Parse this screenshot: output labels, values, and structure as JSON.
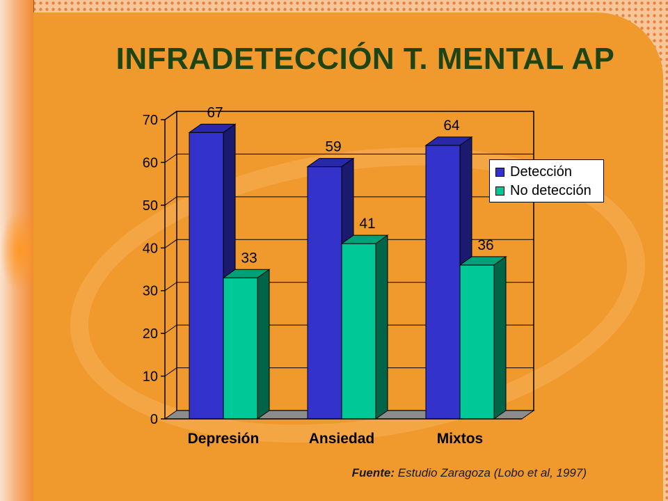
{
  "slide": {
    "title": "INFRADETECCIÓN T. MENTAL AP",
    "source_label": "Fuente:",
    "source_text": "Estudio Zaragoza (Lobo et al, 1997)"
  },
  "colors": {
    "background_orange": "#f09a2e",
    "title_green": "#1f4414",
    "deteccion_front": "#3333cc",
    "deteccion_top": "#2828a8",
    "deteccion_side": "#1a1a6e",
    "no_deteccion_front": "#00c896",
    "no_deteccion_top": "#00a078",
    "no_deteccion_side": "#006448",
    "floor": "#8c8c8c"
  },
  "chart_data": {
    "type": "bar",
    "title": "",
    "xlabel": "",
    "ylabel": "",
    "categories": [
      "Depresión",
      "Ansiedad",
      "Mixtos"
    ],
    "series": [
      {
        "name": "Detección",
        "values": [
          67,
          59,
          64
        ]
      },
      {
        "name": "No detección",
        "values": [
          33,
          41,
          36
        ]
      }
    ],
    "ylim": [
      0,
      70
    ],
    "yticks": [
      0,
      10,
      20,
      30,
      40,
      50,
      60,
      70
    ],
    "data_labels": true,
    "grid": true,
    "legend_position": "right",
    "style": "3d-clustered"
  }
}
